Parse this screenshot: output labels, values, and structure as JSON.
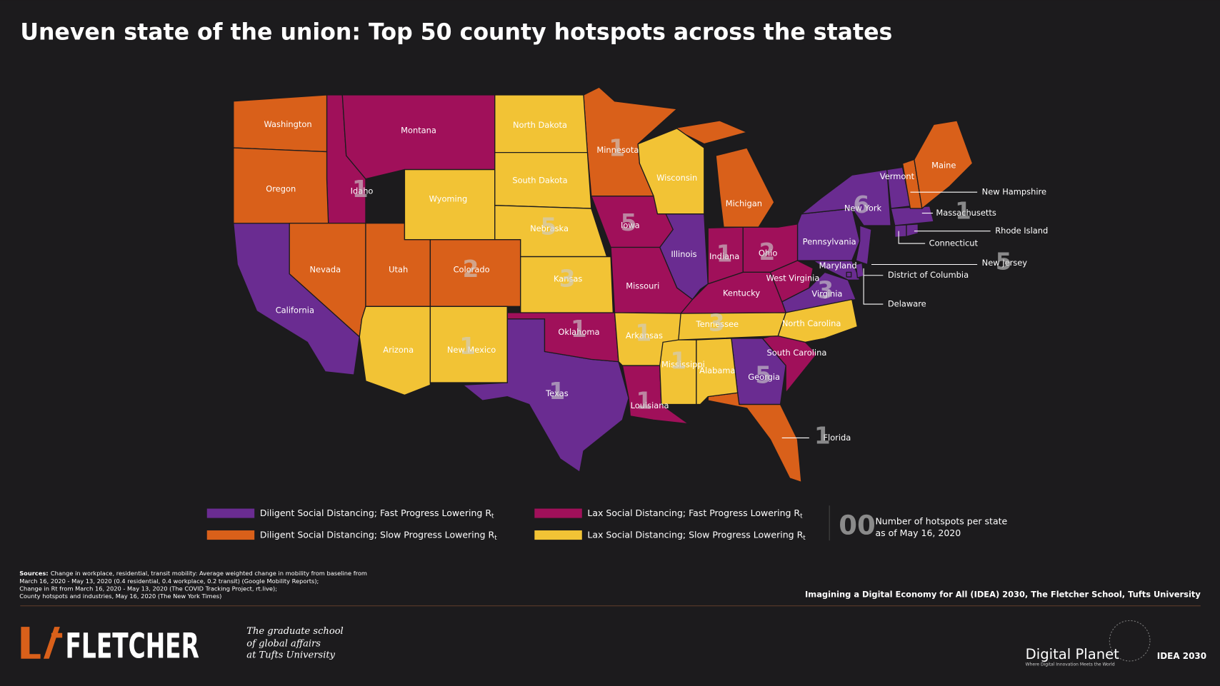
{
  "title": "Uneven state of the union: Top 50 county hotspots across the states",
  "legend": [
    {
      "label": "Diligent Social Distancing; Fast Progress Lowering R",
      "sub": "t",
      "color": "#6a2c91",
      "states": [
        {
          "name": "California"
        },
        {
          "name": "Texas",
          "hotspots": 1
        },
        {
          "name": "Illinois"
        },
        {
          "name": "Georgia",
          "hotspots": 5
        },
        {
          "name": "Virginia",
          "hotspots": 3
        },
        {
          "name": "Maryland"
        },
        {
          "name": "Pennsylvania"
        },
        {
          "name": "New York",
          "hotspots": 6
        },
        {
          "name": "Vermont"
        },
        {
          "name": "Massachusetts",
          "hotspots": 1
        },
        {
          "name": "New Jersey",
          "hotspots": 5
        },
        {
          "name": "Connecticut"
        },
        {
          "name": "Rhode Island"
        },
        {
          "name": "Delaware"
        },
        {
          "name": "District of Columbia"
        }
      ]
    },
    {
      "label": "Lax Social Distancing; Fast Progress Lowering R",
      "sub": "t",
      "color": "#a0105a",
      "states": [
        {
          "name": "Idaho",
          "hotspots": 1
        },
        {
          "name": "Montana"
        },
        {
          "name": "Oklahoma",
          "hotspots": 1
        },
        {
          "name": "Iowa",
          "hotspots": 5
        },
        {
          "name": "Missouri"
        },
        {
          "name": "Louisiana",
          "hotspots": 1
        },
        {
          "name": "Indiana",
          "hotspots": 1
        },
        {
          "name": "Ohio",
          "hotspots": 2
        },
        {
          "name": "Kentucky"
        },
        {
          "name": "West Virginia"
        },
        {
          "name": "South Carolina"
        }
      ]
    },
    {
      "label": "Diligent Social Distancing; Slow Progress Lowering R",
      "sub": "t",
      "color": "#d9601a",
      "states": [
        {
          "name": "Washington"
        },
        {
          "name": "Oregon"
        },
        {
          "name": "Nevada"
        },
        {
          "name": "Utah"
        },
        {
          "name": "Colorado",
          "hotspots": 2
        },
        {
          "name": "Minnesota",
          "hotspots": 1
        },
        {
          "name": "Michigan"
        },
        {
          "name": "Florida",
          "hotspots": 1
        },
        {
          "name": "New Hampshire"
        },
        {
          "name": "Maine"
        }
      ]
    },
    {
      "label": "Lax Social Distancing; Slow Progress Lowering R",
      "sub": "t",
      "color": "#f2c335",
      "states": [
        {
          "name": "Wyoming"
        },
        {
          "name": "Arizona"
        },
        {
          "name": "New Mexico",
          "hotspots": 1
        },
        {
          "name": "North Dakota"
        },
        {
          "name": "South Dakota"
        },
        {
          "name": "Nebraska",
          "hotspots": 5
        },
        {
          "name": "Kansas",
          "hotspots": 3
        },
        {
          "name": "Arkansas",
          "hotspots": 1
        },
        {
          "name": "Wisconsin"
        },
        {
          "name": "Tennessee",
          "hotspots": 3
        },
        {
          "name": "Mississippi",
          "hotspots": 1
        },
        {
          "name": "Alabama"
        },
        {
          "name": "North Carolina"
        }
      ]
    }
  ],
  "key": {
    "sample": "00",
    "lines": [
      "Number of hotspots per state",
      "as of May 16, 2020"
    ]
  },
  "sources": {
    "label": "Sources:",
    "lines": [
      "Change in workplace, residential, transit mobility: Average weighted change in mobility from baseline from",
      "March 16, 2020 - May 13, 2020 (0.4 residential, 0.4 workplace, 0.2 transit) (Google Mobility Reports);",
      "Change in Rt from March 16, 2020 - May 13, 2020 (The COVID Tracking Project, rt.live);",
      "County hotspots and industries, May 16, 2020 (The New York Times)"
    ]
  },
  "credit": "Imagining a Digital Economy for All (IDEA) 2030, The Fletcher School, Tufts University",
  "branding": {
    "fletcher": "FLETCHER",
    "tagline": [
      "The graduate school",
      "of global affairs",
      "at Tufts University"
    ],
    "digital_planet": "Digital Planet",
    "digital_planet_tagline": "Where Digital Innovation Meets the World",
    "idea": "IDEA 2030"
  }
}
